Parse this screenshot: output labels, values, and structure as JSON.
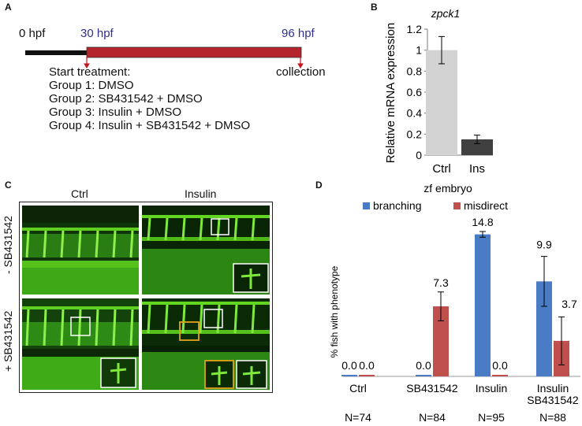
{
  "panels": {
    "A": {
      "letter": "A",
      "timeline": {
        "start_label": "0 hpf",
        "treat_label": "30 hpf",
        "end_label": "96 hpf",
        "collection_label": "collection",
        "colors": {
          "pre": "#111111",
          "treatment": "#b5252e",
          "arrow": "#c0161e",
          "time_text": "#2f2f8f"
        }
      },
      "treatment_lines": [
        "Start treatment:",
        "Group 1: DMSO",
        "Group 2: SB431542 + DMSO",
        "Group 3: Insulin + DMSO",
        "Group 4: Insulin + SB431542 + DMSO"
      ]
    },
    "B": {
      "letter": "B"
    },
    "C": {
      "letter": "C",
      "col_labels": [
        "Ctrl",
        "Insulin"
      ],
      "row_labels": [
        "- SB431542",
        "+ SB431542"
      ],
      "box_colors": {
        "white": "#ffffff",
        "orange": "#e3a21a"
      }
    },
    "D": {
      "letter": "D",
      "n_labels": [
        "N=74",
        "N=84",
        "N=95",
        "N=88"
      ]
    }
  },
  "chart_data": [
    {
      "type": "bar",
      "title": "zpck1",
      "ylabel": "Relative mRNA expression",
      "xlabel": "",
      "categories": [
        "Ctrl",
        "Ins"
      ],
      "values": [
        1.0,
        0.15
      ],
      "errors": [
        0.13,
        0.04
      ],
      "colors": [
        "#d3d3d3",
        "#404040"
      ],
      "ylim": [
        0,
        1.2
      ],
      "yticks": [
        0,
        0.2,
        0.4,
        0.6,
        0.8,
        1,
        1.2
      ],
      "ytick_labels": [
        "0",
        "0.2",
        "0.4",
        "0.6",
        "0.8",
        "1",
        "1.2"
      ],
      "grid": false
    },
    {
      "type": "bar",
      "title": "zf embryo",
      "ylabel": "% fish with phenotype",
      "xlabel": "",
      "categories": [
        "Ctrl",
        "SB431542",
        "Insulin",
        "Insulin\nSB431542"
      ],
      "series": [
        {
          "name": "branching",
          "color": "#4a7cc6",
          "values": [
            0.0,
            0.0,
            14.8,
            9.9
          ],
          "errors": [
            0,
            0,
            0.3,
            2.6
          ]
        },
        {
          "name": "misdirect",
          "color": "#c0504d",
          "values": [
            0.0,
            7.3,
            0.0,
            3.7
          ],
          "errors": [
            0,
            1.5,
            0,
            2.5
          ]
        }
      ],
      "data_labels": [
        [
          "0.0",
          "0.0",
          "14.8",
          "9.9"
        ],
        [
          "0.0",
          "7.3",
          "0.0",
          "3.7"
        ]
      ],
      "ylim": [
        0,
        16
      ],
      "legend_position": "top",
      "grid": false
    }
  ]
}
